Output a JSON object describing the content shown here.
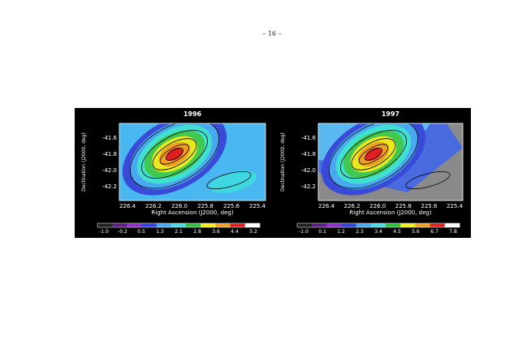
{
  "page_number": "– 16 –",
  "panels": [
    {
      "title": "1996",
      "y_label": "Declination (J2000, deg)",
      "x_label": "Right Ascension (J2000, deg)",
      "x_ticks": [
        "226.4",
        "226.2",
        "226.0",
        "225.8",
        "225.6",
        "225.4"
      ],
      "y_ticks": [
        "-41.6",
        "-41.8",
        "-42.0",
        "-42.2"
      ],
      "colorbar_ticks": [
        "-1.0",
        "-0.2",
        "0.5",
        "1.3",
        "2.1",
        "2.8",
        "3.6",
        "4.4",
        "5.2"
      ]
    },
    {
      "title": "1997",
      "y_label": "Declination (J2000, deg)",
      "x_label": "Right Ascension (J2000, deg)",
      "x_ticks": [
        "226.4",
        "226.2",
        "226.0",
        "225.8",
        "225.6",
        "225.4"
      ],
      "y_ticks": [
        "-41.6",
        "-41.8",
        "-42.0",
        "-42.2"
      ],
      "colorbar_ticks": [
        "-1.0",
        "0.1",
        "1.2",
        "2.3",
        "3.4",
        "4.5",
        "5.6",
        "6.7",
        "7.8"
      ]
    }
  ]
}
